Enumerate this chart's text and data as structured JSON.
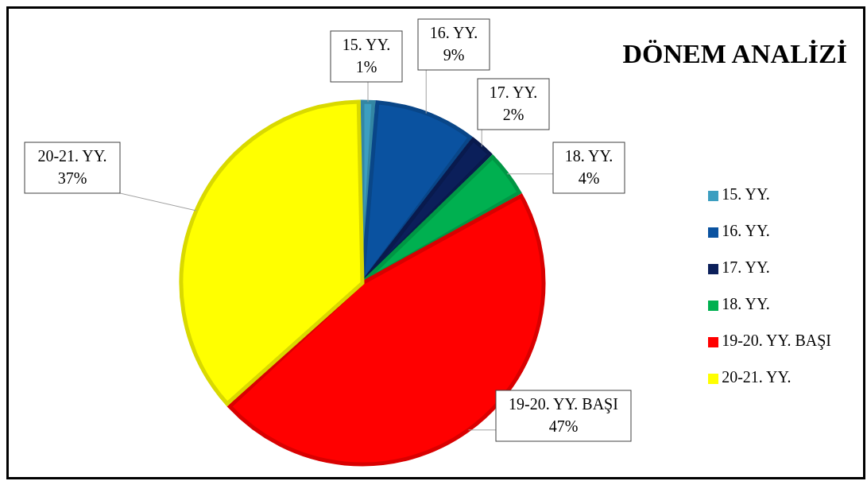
{
  "chart_data": {
    "type": "pie",
    "title": "DÖNEM ANALİZİ",
    "categories": [
      "15. YY.",
      "16. YY.",
      "17. YY.",
      "18. YY.",
      "19-20. YY. BAŞI",
      "20-21. YY."
    ],
    "values": [
      1,
      9,
      2,
      4,
      47,
      37
    ],
    "value_labels": [
      "1%",
      "9%",
      "2%",
      "4%",
      "47%",
      "37%"
    ],
    "colors": [
      "#3c9ec0",
      "#0a52a0",
      "#0b1f5a",
      "#00b050",
      "#ff0000",
      "#ffff00"
    ],
    "legend": "right"
  }
}
